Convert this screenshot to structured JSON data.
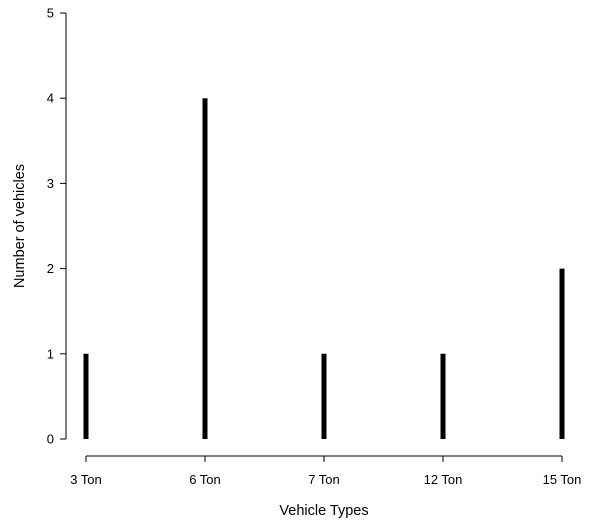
{
  "chart_data": {
    "type": "bar",
    "style": "vertical spikes (type h)",
    "categories": [
      "3 Ton",
      "6 Ton",
      "7 Ton",
      "12 Ton",
      "15 Ton"
    ],
    "values": [
      1,
      4,
      1,
      1,
      2
    ],
    "title": "",
    "xlabel": "Vehicle Types",
    "ylabel": "Number of vehicles",
    "ylim": [
      0,
      5
    ],
    "yticks": [
      0,
      1,
      2,
      3,
      4,
      5
    ],
    "grid": false,
    "legend": "none",
    "bar_color": "#000000"
  }
}
